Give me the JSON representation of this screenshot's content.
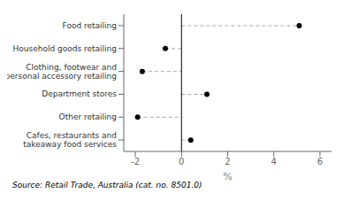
{
  "chart_data": {
    "type": "lollipop",
    "orientation": "horizontal",
    "categories": [
      "Food retailing",
      "Household goods retailing",
      "Clothing, footwear and\npersonal accessory retailing",
      "Department stores",
      "Other retailing",
      "Cafes, restaurants and\ntakeaway food services"
    ],
    "values": [
      5.1,
      -0.7,
      -1.7,
      1.1,
      -1.9,
      0.4
    ],
    "xlim": [
      -2.5,
      6.5
    ],
    "xticks": [
      -2,
      0,
      2,
      4,
      6
    ],
    "xlabel": "%",
    "color": "black",
    "line_style": "dashed",
    "grid": false,
    "annotations": [
      "Source: Retail Trade, Australia (cat. no. 8501.0)"
    ]
  }
}
